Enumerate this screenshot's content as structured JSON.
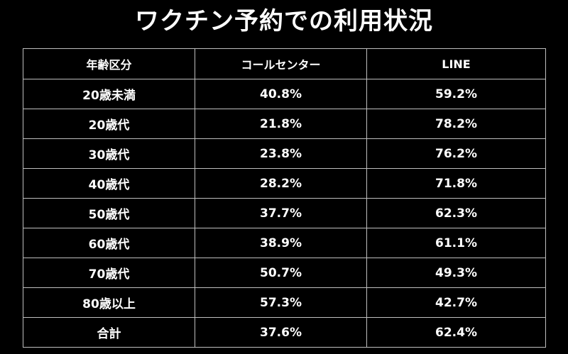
{
  "title": "ワクチン予約での利用状況",
  "chart_data": {
    "type": "table",
    "columns": [
      "年齢区分",
      "コールセンター",
      "LINE"
    ],
    "rows": [
      [
        "20歳未満",
        "40.8%",
        "59.2%"
      ],
      [
        "20歳代",
        "21.8%",
        "78.2%"
      ],
      [
        "30歳代",
        "23.8%",
        "76.2%"
      ],
      [
        "40歳代",
        "28.2%",
        "71.8%"
      ],
      [
        "50歳代",
        "37.7%",
        "62.3%"
      ],
      [
        "60歳代",
        "38.9%",
        "61.1%"
      ],
      [
        "70歳代",
        "50.7%",
        "49.3%"
      ],
      [
        "80歳以上",
        "57.3%",
        "42.7%"
      ],
      [
        "合計",
        "37.6%",
        "62.4%"
      ]
    ],
    "values": {
      "コールセンター": [
        40.8,
        21.8,
        23.8,
        28.2,
        37.7,
        38.9,
        50.7,
        57.3,
        37.6
      ],
      "LINE": [
        59.2,
        78.2,
        76.2,
        71.8,
        62.3,
        61.1,
        49.3,
        42.7,
        62.4
      ]
    }
  },
  "colors": {
    "background": "#000000",
    "text": "#ffffff",
    "border": "#bfbfbf"
  }
}
